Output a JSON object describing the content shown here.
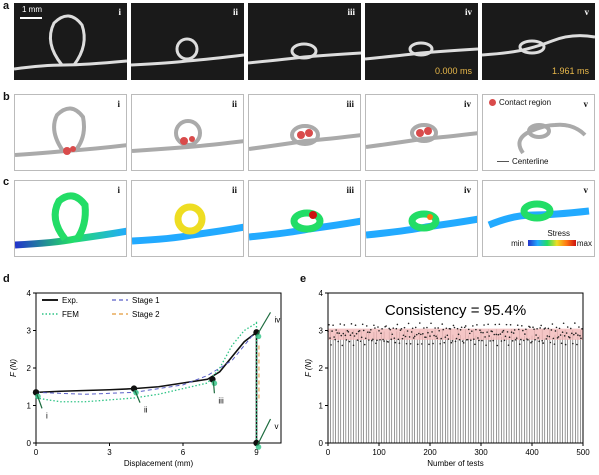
{
  "panel_labels": [
    "a",
    "b",
    "c",
    "d",
    "e"
  ],
  "row_a": {
    "scale_bar": "1 mm",
    "panels": [
      {
        "roman": "i",
        "time": ""
      },
      {
        "roman": "ii",
        "time": ""
      },
      {
        "roman": "iii",
        "time": ""
      },
      {
        "roman": "iv",
        "time": "0.000 ms"
      },
      {
        "roman": "v",
        "time": "1.961 ms"
      }
    ]
  },
  "row_b": {
    "panels": [
      {
        "roman": "i"
      },
      {
        "roman": "ii"
      },
      {
        "roman": "iii"
      },
      {
        "roman": "iv"
      },
      {
        "roman": "v"
      }
    ],
    "legend_contact": "Contact region",
    "legend_centerline": "Centerline"
  },
  "row_c": {
    "panels": [
      {
        "roman": "i"
      },
      {
        "roman": "ii"
      },
      {
        "roman": "iii"
      },
      {
        "roman": "iv"
      },
      {
        "roman": "v"
      }
    ],
    "colorbar_title": "Stress",
    "colorbar_min": "min",
    "colorbar_max": "max"
  },
  "colors": {
    "exp": "#111111",
    "stage1": "#5a5fc8",
    "fem": "#2fc486",
    "stage2": "#e39a3b",
    "contact": "#d94b4b",
    "band": "#f2b8b8"
  },
  "chart_data": [
    {
      "type": "line",
      "xlabel": "Displacement (mm)",
      "ylabel": "F (N)",
      "xlim": [
        0,
        10
      ],
      "ylim": [
        0,
        4
      ],
      "xticks": [
        0,
        3,
        6,
        9
      ],
      "yticks": [
        0,
        1,
        2,
        3,
        4
      ],
      "legend": [
        "Exp.",
        "Stage 1",
        "FEM",
        "Stage 2"
      ],
      "point_labels": [
        "i",
        "ii",
        "iii",
        "iv",
        "v"
      ],
      "series": [
        {
          "name": "Exp.",
          "x": [
            0,
            1,
            2,
            3,
            4,
            5,
            6,
            7,
            7.5,
            8,
            8.5,
            9,
            9
          ],
          "y": [
            1.35,
            1.38,
            1.4,
            1.42,
            1.45,
            1.5,
            1.6,
            1.7,
            1.9,
            2.3,
            2.7,
            2.95,
            0
          ]
        },
        {
          "name": "Stage 1",
          "x": [
            0,
            2,
            4,
            6,
            7,
            8,
            8.5,
            9
          ],
          "y": [
            1.35,
            1.3,
            1.35,
            1.55,
            1.8,
            2.2,
            2.6,
            3.0
          ]
        },
        {
          "name": "FEM",
          "x": [
            0,
            1,
            2,
            3,
            4,
            5,
            6,
            7,
            7.5,
            8,
            8.5,
            9,
            9,
            9
          ],
          "y": [
            1.2,
            1.1,
            1.1,
            1.15,
            1.2,
            1.3,
            1.45,
            1.6,
            2.0,
            2.6,
            3.0,
            3.2,
            3.25,
            0
          ]
        },
        {
          "name": "Stage 2",
          "x": [
            9.1,
            9.1
          ],
          "y": [
            2.6,
            1.1
          ]
        }
      ],
      "markers": [
        {
          "label": "i",
          "x": 0,
          "y": 1.35
        },
        {
          "label": "ii",
          "x": 4,
          "y": 1.45
        },
        {
          "label": "iii",
          "x": 7.2,
          "y": 1.7
        },
        {
          "label": "iv",
          "x": 9,
          "y": 2.95
        },
        {
          "label": "v",
          "x": 9,
          "y": 0
        }
      ]
    },
    {
      "type": "bar",
      "title": "Consistency = 95.4%",
      "xlabel": "Number of tests",
      "ylabel": "F (N)",
      "xlim": [
        0,
        500
      ],
      "ylim": [
        0,
        4
      ],
      "xticks": [
        0,
        100,
        200,
        300,
        400,
        500
      ],
      "yticks": [
        0,
        1,
        2,
        3,
        4
      ],
      "n_tests": 500,
      "mean": 2.9,
      "band": [
        2.75,
        3.05
      ]
    }
  ]
}
